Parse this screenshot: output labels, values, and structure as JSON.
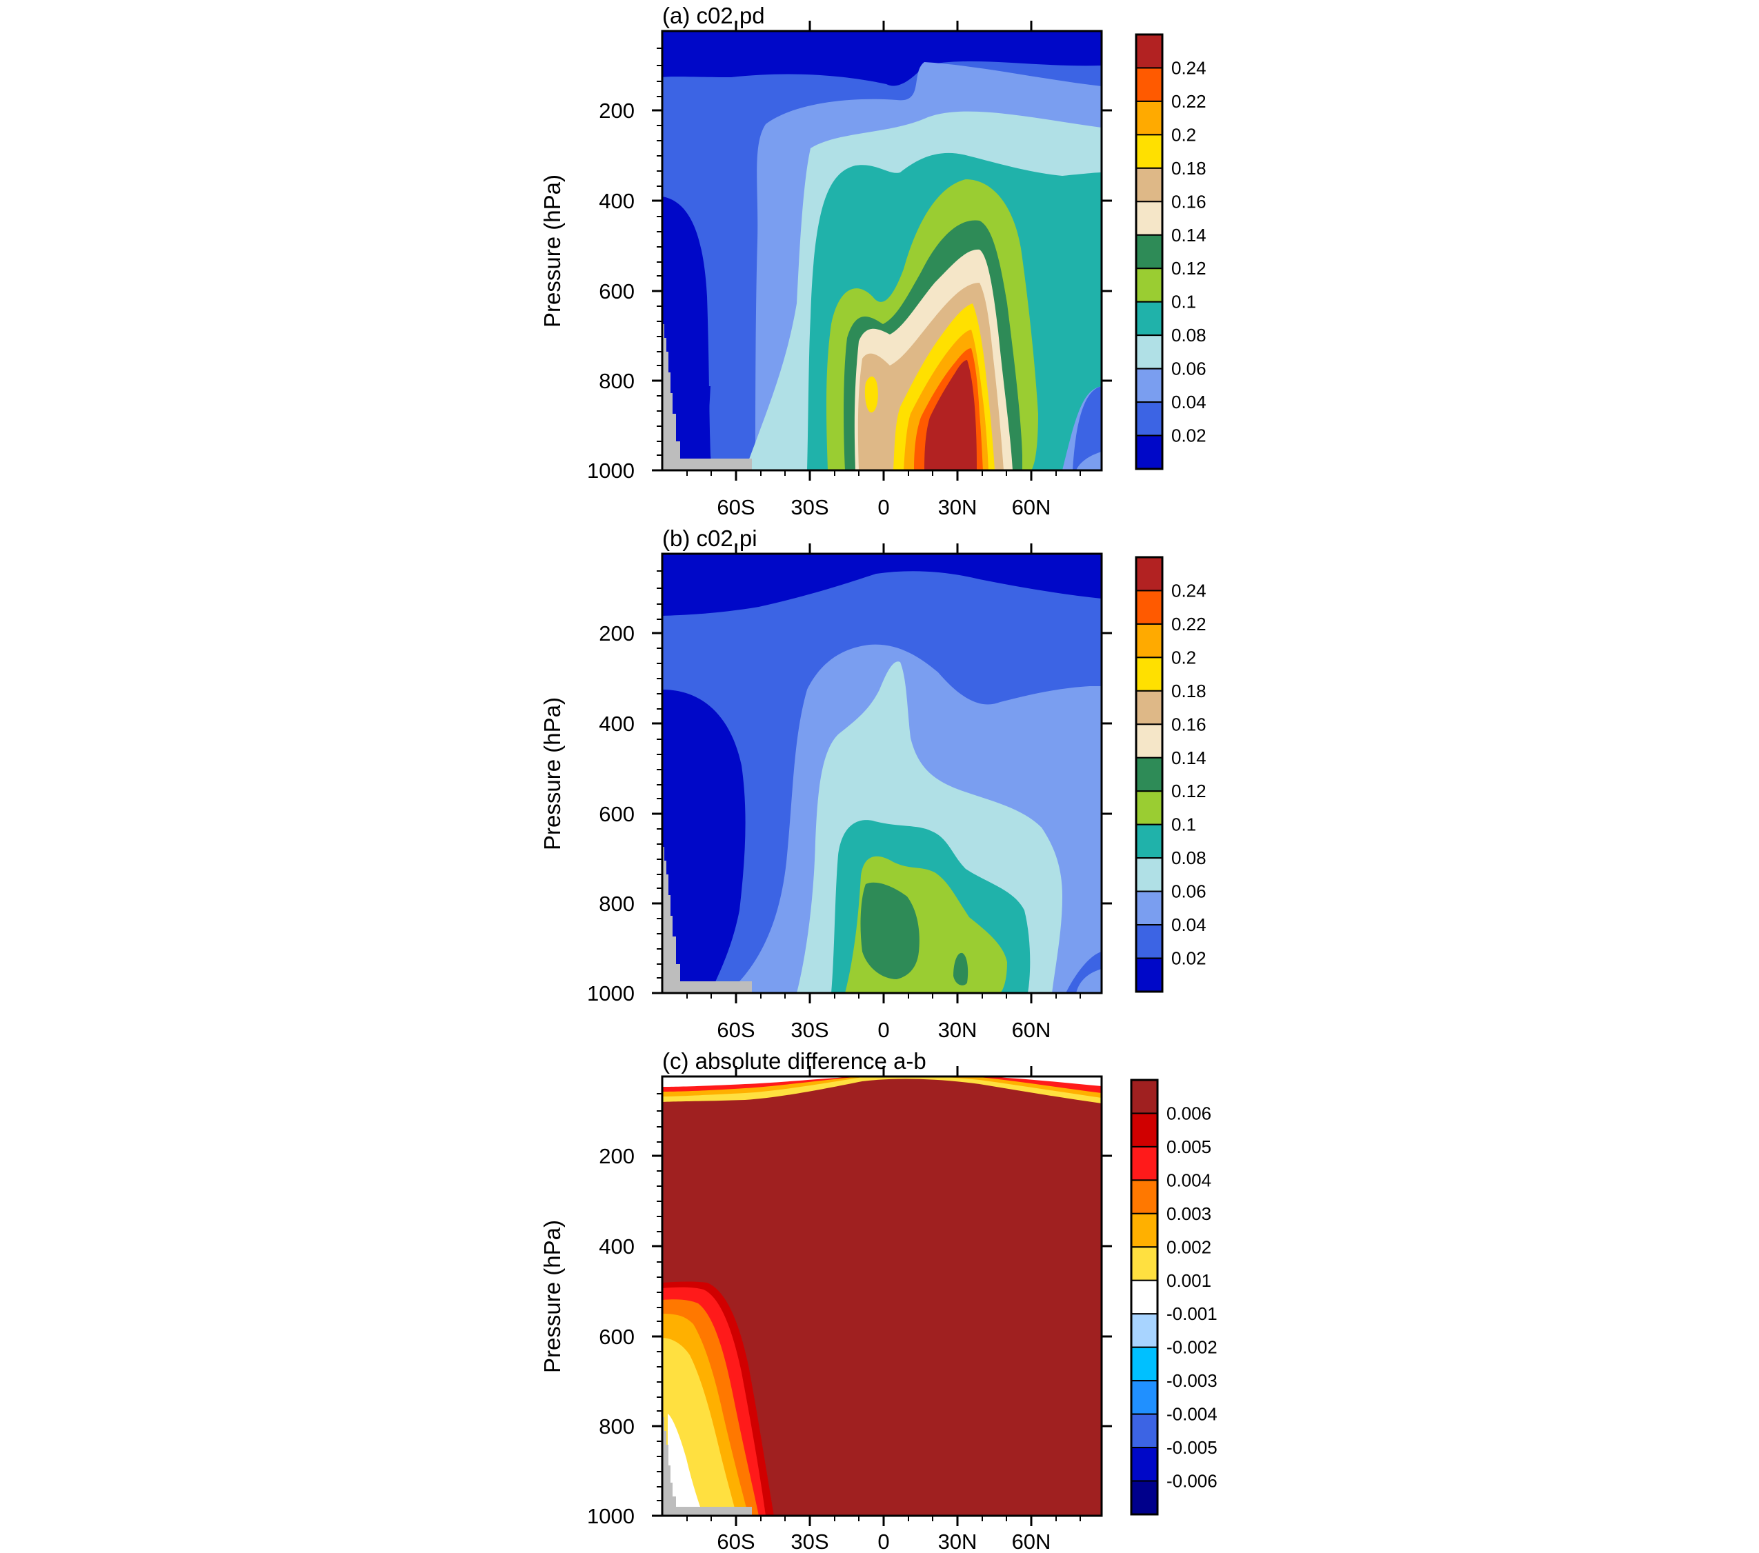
{
  "chart_data": [
    {
      "type": "heatmap",
      "title": "(a) c02.pd",
      "ylabel": "Pressure (hPa)",
      "xlabel": "",
      "x_ticks": [
        "60S",
        "30S",
        "0",
        "30N",
        "60N"
      ],
      "x_tick_values": [
        -60,
        -30,
        0,
        30,
        60
      ],
      "y_ticks": [
        "200",
        "400",
        "600",
        "800",
        "1000"
      ],
      "y_tick_values": [
        200,
        400,
        600,
        800,
        1000
      ],
      "xlim": [
        -88,
        90
      ],
      "ylim": [
        1000,
        30
      ],
      "colorbar": {
        "levels": [
          "0.02",
          "0.04",
          "0.06",
          "0.08",
          "0.1",
          "0.12",
          "0.14",
          "0.16",
          "0.18",
          "0.2",
          "0.22",
          "0.24"
        ],
        "colors": [
          "#0008c8",
          "#3c64e4",
          "#7a9ef0",
          "#b0e0e6",
          "#20b2aa",
          "#9acd32",
          "#2e8b57",
          "#f5e6c8",
          "#deb887",
          "#ffe000",
          "#ffaa00",
          "#ff5a00",
          "#b22222"
        ]
      },
      "grid": false,
      "legend_placement": "right"
    },
    {
      "type": "heatmap",
      "title": "(b) c02.pi",
      "ylabel": "Pressure (hPa)",
      "xlabel": "",
      "x_ticks": [
        "60S",
        "30S",
        "0",
        "30N",
        "60N"
      ],
      "x_tick_values": [
        -60,
        -30,
        0,
        30,
        60
      ],
      "y_ticks": [
        "200",
        "400",
        "600",
        "800",
        "1000"
      ],
      "y_tick_values": [
        200,
        400,
        600,
        800,
        1000
      ],
      "xlim": [
        -88,
        90
      ],
      "ylim": [
        1000,
        30
      ],
      "colorbar": {
        "levels": [
          "0.02",
          "0.04",
          "0.06",
          "0.08",
          "0.1",
          "0.12",
          "0.14",
          "0.16",
          "0.18",
          "0.2",
          "0.22",
          "0.24"
        ],
        "colors": [
          "#0008c8",
          "#3c64e4",
          "#7a9ef0",
          "#b0e0e6",
          "#20b2aa",
          "#9acd32",
          "#2e8b57",
          "#f5e6c8",
          "#deb887",
          "#ffe000",
          "#ffaa00",
          "#ff5a00",
          "#b22222"
        ]
      },
      "grid": false,
      "legend_placement": "right"
    },
    {
      "type": "heatmap",
      "title": "(c) absolute difference a-b",
      "ylabel": "Pressure (hPa)",
      "xlabel": "",
      "x_ticks": [
        "60S",
        "30S",
        "0",
        "30N",
        "60N"
      ],
      "x_tick_values": [
        -60,
        -30,
        0,
        30,
        60
      ],
      "y_ticks": [
        "200",
        "400",
        "600",
        "800",
        "1000"
      ],
      "y_tick_values": [
        200,
        400,
        600,
        800,
        1000
      ],
      "xlim": [
        -88,
        90
      ],
      "ylim": [
        1000,
        30
      ],
      "colorbar": {
        "levels": [
          "0.006",
          "0.005",
          "0.004",
          "0.003",
          "0.002",
          "0.001",
          "-0.001",
          "-0.002",
          "-0.003",
          "-0.004",
          "-0.005",
          "-0.006"
        ],
        "colors": [
          "#a02020",
          "#d00000",
          "#ff1a1a",
          "#ff7800",
          "#ffb000",
          "#ffe040",
          "#ffffff",
          "#a8d4ff",
          "#00c0ff",
          "#2090ff",
          "#3c64e4",
          "#0008c8",
          "#00008b"
        ]
      },
      "grid": false,
      "legend_placement": "right"
    }
  ]
}
